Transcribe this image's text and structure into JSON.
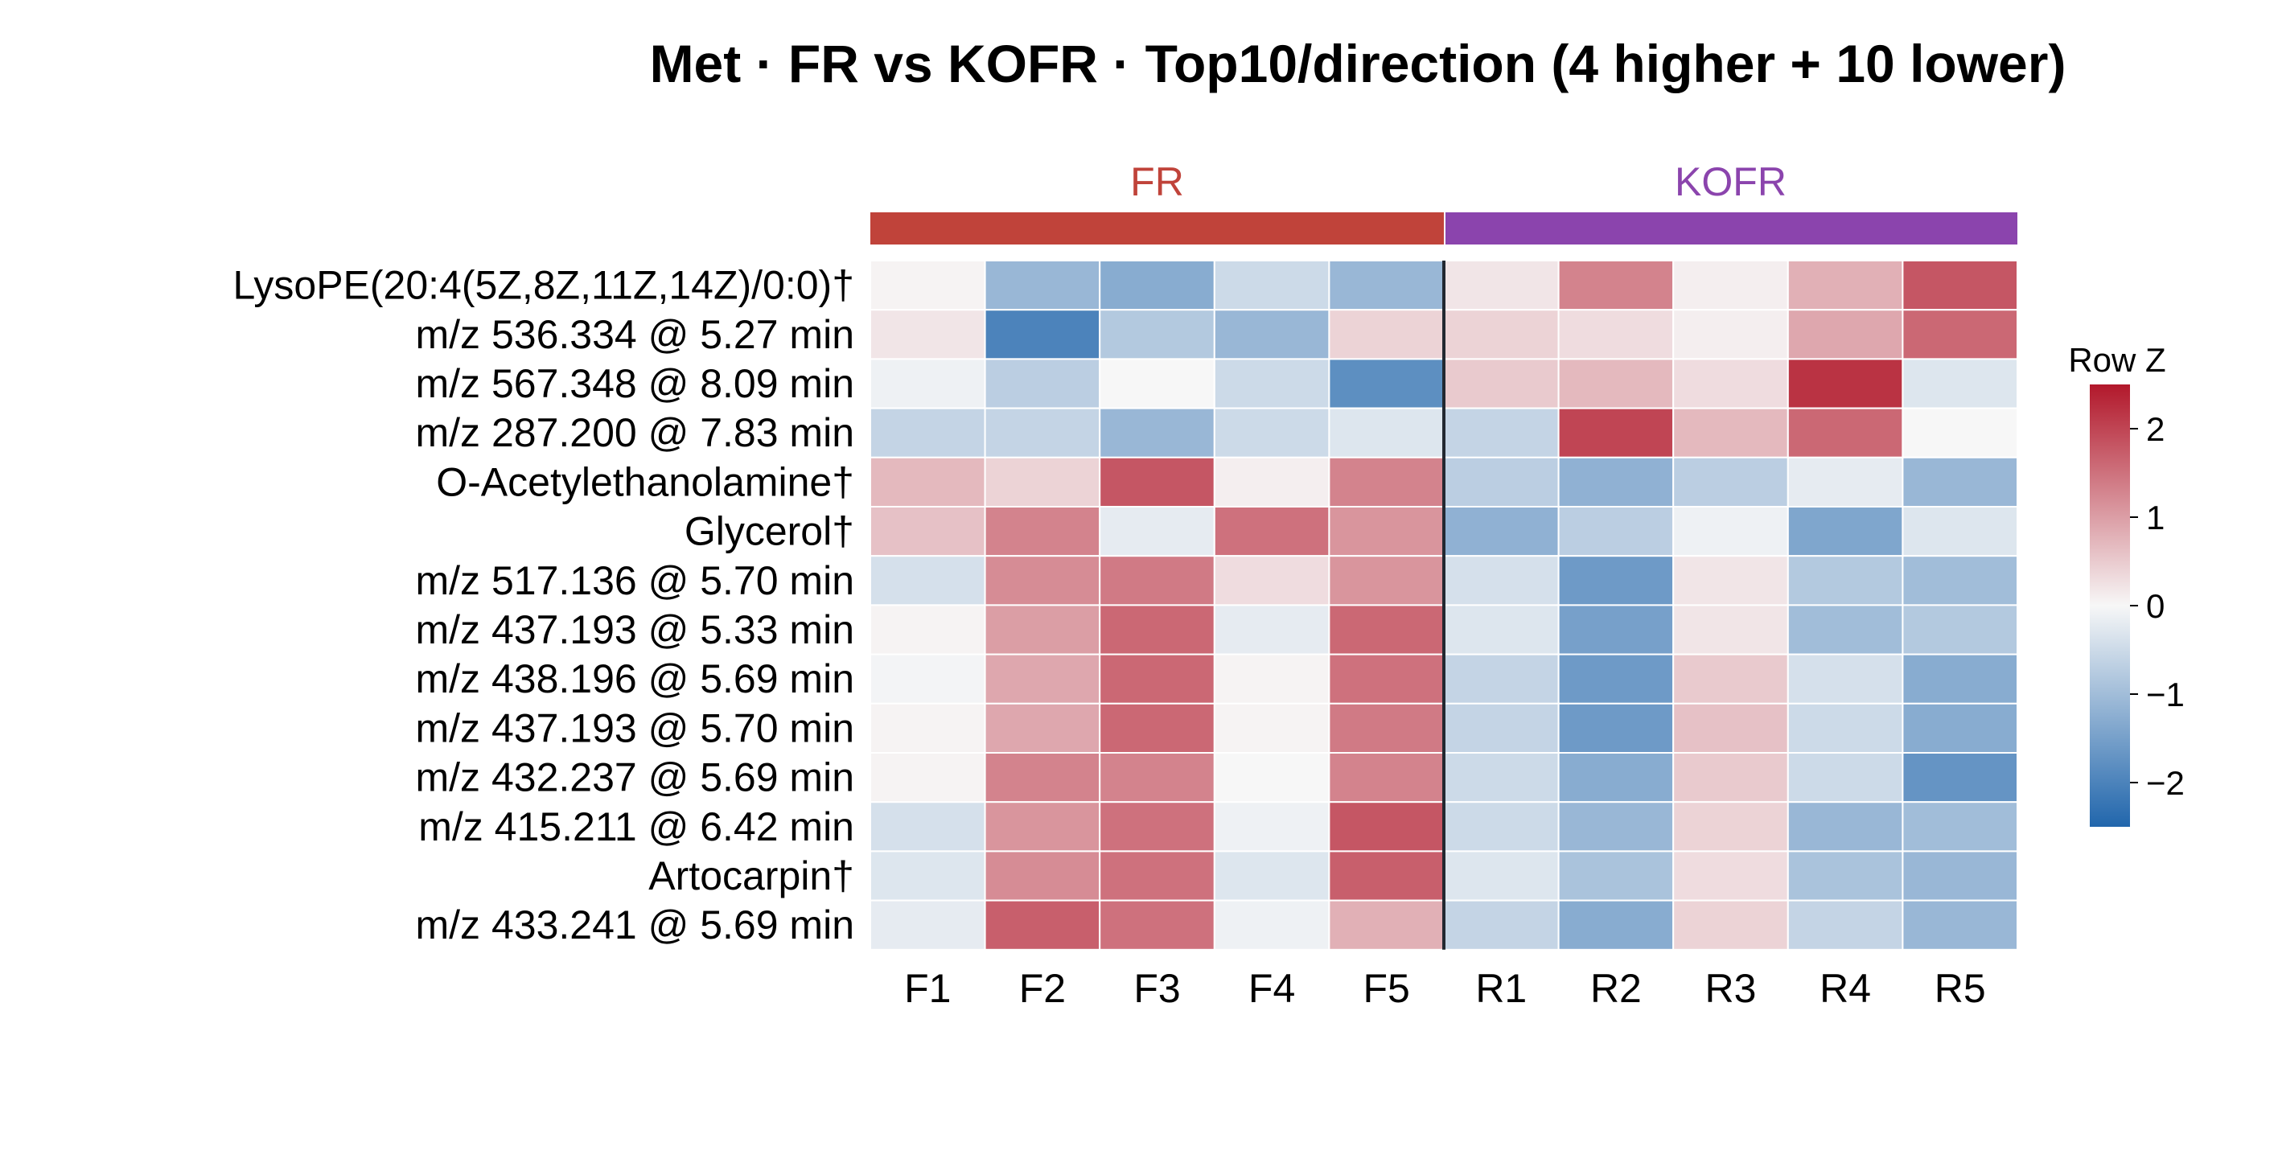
{
  "chart_data": {
    "type": "heatmap",
    "title": "Met · FR vs KOFR · Top10/direction (4 higher + 10 lower)",
    "groups": [
      {
        "name": "FR",
        "color": "#c0433a",
        "columns": [
          "F1",
          "F2",
          "F3",
          "F4",
          "F5"
        ]
      },
      {
        "name": "KOFR",
        "color": "#8b44ad",
        "columns": [
          "R1",
          "R2",
          "R3",
          "R4",
          "R5"
        ]
      }
    ],
    "columns": [
      "F1",
      "F2",
      "F3",
      "F4",
      "F5",
      "R1",
      "R2",
      "R3",
      "R4",
      "R5"
    ],
    "rows": [
      "LysoPE(20:4(5Z,8Z,11Z,14Z)/0:0)†",
      "m/z 536.334 @ 5.27 min",
      "m/z 567.348 @ 8.09 min",
      "m/z 287.200 @ 7.83 min",
      "O-Acetylethanolamine†",
      "Glycerol†",
      "m/z 517.136 @ 5.70 min",
      "m/z 437.193 @ 5.33 min",
      "m/z 438.196 @ 5.69 min",
      "m/z 437.193 @ 5.70 min",
      "m/z 432.237 @ 5.69 min",
      "m/z 415.211 @ 6.42 min",
      "Artocarpin†",
      "m/z 433.241 @ 5.69 min"
    ],
    "values": [
      [
        0.05,
        -1.1,
        -1.3,
        -0.5,
        -1.1,
        0.2,
        1.3,
        0.1,
        0.8,
        1.8
      ],
      [
        0.2,
        -2.0,
        -0.8,
        -1.1,
        0.4,
        0.4,
        0.3,
        0.1,
        0.9,
        1.6
      ],
      [
        -0.1,
        -0.7,
        0.0,
        -0.5,
        -1.8,
        0.5,
        0.7,
        0.3,
        2.2,
        -0.3
      ],
      [
        -0.6,
        -0.6,
        -1.1,
        -0.5,
        -0.3,
        -0.6,
        2.0,
        0.7,
        1.6,
        0.0
      ],
      [
        0.7,
        0.4,
        1.8,
        0.1,
        1.3,
        -0.7,
        -1.2,
        -0.7,
        -0.2,
        -1.1
      ],
      [
        0.6,
        1.3,
        -0.2,
        1.5,
        1.1,
        -1.2,
        -0.7,
        -0.1,
        -1.4,
        -0.3
      ],
      [
        -0.4,
        1.2,
        1.4,
        0.3,
        1.1,
        -0.4,
        -1.6,
        0.2,
        -0.8,
        -1.0
      ],
      [
        0.05,
        1.0,
        1.6,
        -0.2,
        1.6,
        -0.3,
        -1.5,
        0.2,
        -1.0,
        -0.8
      ],
      [
        -0.05,
        0.9,
        1.6,
        0.05,
        1.5,
        -0.6,
        -1.6,
        0.5,
        -0.4,
        -1.3
      ],
      [
        0.05,
        0.9,
        1.6,
        0.05,
        1.4,
        -0.6,
        -1.6,
        0.6,
        -0.5,
        -1.3
      ],
      [
        0.05,
        1.3,
        1.3,
        0.0,
        1.3,
        -0.5,
        -1.3,
        0.5,
        -0.5,
        -1.7
      ],
      [
        -0.4,
        1.1,
        1.5,
        -0.1,
        1.8,
        -0.5,
        -1.1,
        0.4,
        -1.1,
        -1.0
      ],
      [
        -0.3,
        1.2,
        1.5,
        -0.3,
        1.7,
        -0.3,
        -0.9,
        0.3,
        -0.9,
        -1.1
      ],
      [
        -0.2,
        1.7,
        1.5,
        -0.1,
        0.8,
        -0.6,
        -1.3,
        0.4,
        -0.6,
        -1.1
      ]
    ],
    "colorbar": {
      "label": "Row Z",
      "vmin": -2.5,
      "vmax": 2.5,
      "ticks": [
        2,
        1,
        0,
        -1,
        -2
      ],
      "tick_labels": [
        "2",
        "1",
        "0",
        "−1",
        "−2"
      ],
      "cmap_low": "#2166ac",
      "cmap_mid": "#f7f7f7",
      "cmap_high": "#b2182b"
    }
  }
}
